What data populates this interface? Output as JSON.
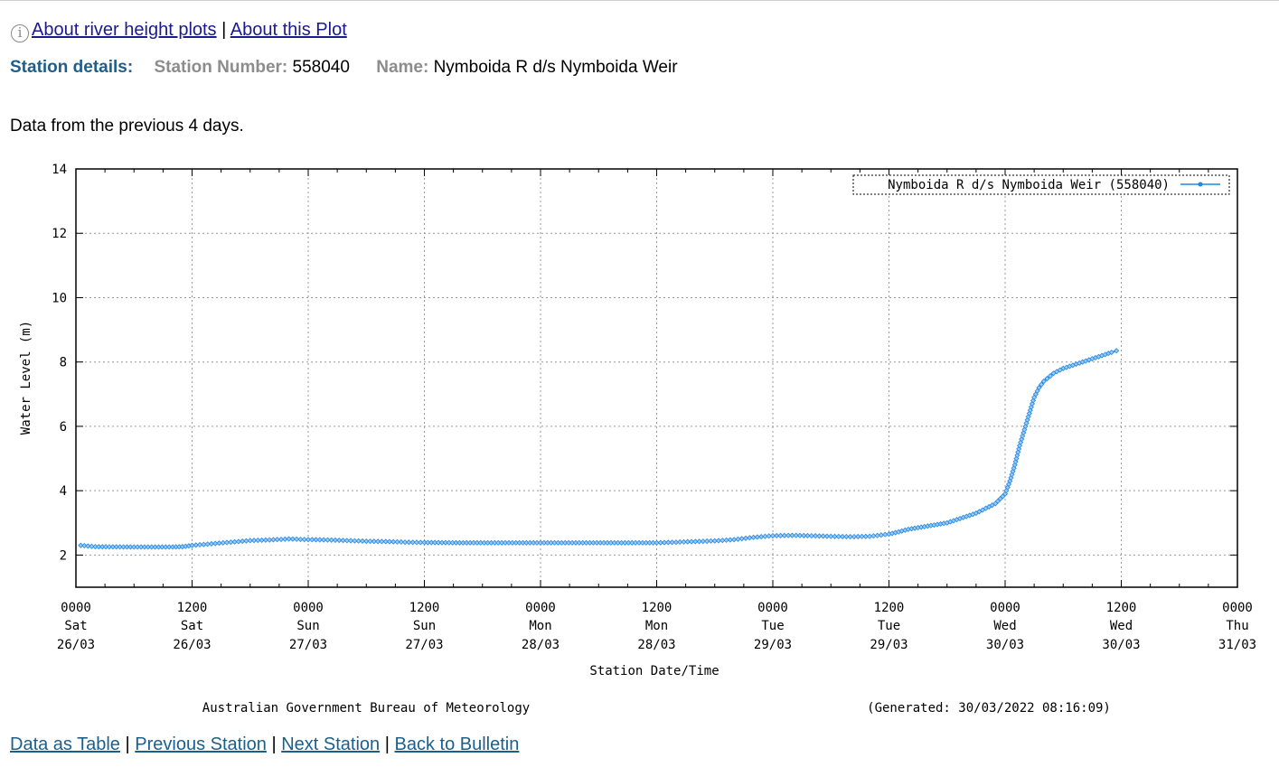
{
  "top_links": {
    "info_icon": "info-circle-icon",
    "about_river": "About river height plots",
    "separator": "|",
    "about_plot": "About this Plot"
  },
  "station": {
    "details_label": "Station details:",
    "number_label": "Station Number:",
    "number": "558040",
    "name_label": "Name:",
    "name": "Nymboida R d/s Nymboida Weir"
  },
  "data_note": "Data from the previous 4 days.",
  "chart_data": {
    "type": "line",
    "ylabel": "Water Level (m)",
    "xlabel": "Station Date/Time",
    "ylim": [
      1,
      14
    ],
    "y_ticks": [
      "2",
      "4",
      "6",
      "8",
      "10",
      "12",
      "14"
    ],
    "x_range_hours": [
      0,
      120
    ],
    "x_ticks": [
      {
        "time": "0000",
        "day": "Sat",
        "date": "26/03"
      },
      {
        "time": "1200",
        "day": "Sat",
        "date": "26/03"
      },
      {
        "time": "0000",
        "day": "Sun",
        "date": "27/03"
      },
      {
        "time": "1200",
        "day": "Sun",
        "date": "27/03"
      },
      {
        "time": "0000",
        "day": "Mon",
        "date": "28/03"
      },
      {
        "time": "1200",
        "day": "Mon",
        "date": "28/03"
      },
      {
        "time": "0000",
        "day": "Tue",
        "date": "29/03"
      },
      {
        "time": "1200",
        "day": "Tue",
        "date": "29/03"
      },
      {
        "time": "0000",
        "day": "Wed",
        "date": "30/03"
      },
      {
        "time": "1200",
        "day": "Wed",
        "date": "30/03"
      },
      {
        "time": "0000",
        "day": "Thu",
        "date": "31/03"
      }
    ],
    "grid": true,
    "legend_position": "top-right",
    "series": [
      {
        "name": "Nymboida R d/s Nymboida Weir (558040)",
        "color": "#1e88e5",
        "points": [
          [
            0.5,
            2.3
          ],
          [
            2,
            2.26
          ],
          [
            6,
            2.25
          ],
          [
            10,
            2.25
          ],
          [
            11,
            2.26
          ],
          [
            12,
            2.3
          ],
          [
            14,
            2.35
          ],
          [
            16,
            2.4
          ],
          [
            18,
            2.45
          ],
          [
            20,
            2.47
          ],
          [
            22,
            2.5
          ],
          [
            24,
            2.48
          ],
          [
            26,
            2.47
          ],
          [
            28,
            2.45
          ],
          [
            30,
            2.43
          ],
          [
            32,
            2.42
          ],
          [
            34,
            2.4
          ],
          [
            36,
            2.39
          ],
          [
            40,
            2.38
          ],
          [
            44,
            2.38
          ],
          [
            48,
            2.38
          ],
          [
            52,
            2.38
          ],
          [
            56,
            2.38
          ],
          [
            60,
            2.38
          ],
          [
            62,
            2.4
          ],
          [
            64,
            2.42
          ],
          [
            66,
            2.44
          ],
          [
            68,
            2.48
          ],
          [
            70,
            2.55
          ],
          [
            72,
            2.6
          ],
          [
            74,
            2.61
          ],
          [
            76,
            2.6
          ],
          [
            78,
            2.58
          ],
          [
            80,
            2.57
          ],
          [
            82,
            2.58
          ],
          [
            84,
            2.65
          ],
          [
            85,
            2.72
          ],
          [
            86,
            2.8
          ],
          [
            87,
            2.85
          ],
          [
            88,
            2.9
          ],
          [
            89,
            2.95
          ],
          [
            90,
            3.0
          ],
          [
            91,
            3.1
          ],
          [
            92,
            3.2
          ],
          [
            93,
            3.3
          ],
          [
            94,
            3.45
          ],
          [
            95,
            3.6
          ],
          [
            96,
            3.9
          ],
          [
            96.5,
            4.3
          ],
          [
            97,
            4.8
          ],
          [
            97.5,
            5.4
          ],
          [
            98,
            5.9
          ],
          [
            98.5,
            6.4
          ],
          [
            99,
            6.9
          ],
          [
            99.5,
            7.2
          ],
          [
            100,
            7.4
          ],
          [
            101,
            7.65
          ],
          [
            102,
            7.8
          ],
          [
            103,
            7.9
          ],
          [
            104,
            8.0
          ],
          [
            105,
            8.1
          ],
          [
            106,
            8.2
          ],
          [
            107,
            8.3
          ],
          [
            107.5,
            8.35
          ]
        ]
      }
    ]
  },
  "footer": {
    "agency": "Australian Government Bureau of Meteorology",
    "generated": "(Generated: 30/03/2022 08:16:09)"
  },
  "bottom_links": {
    "table": "Data as Table",
    "previous": "Previous Station",
    "next": "Next Station",
    "back": "Back to Bulletin",
    "separator": "|"
  }
}
